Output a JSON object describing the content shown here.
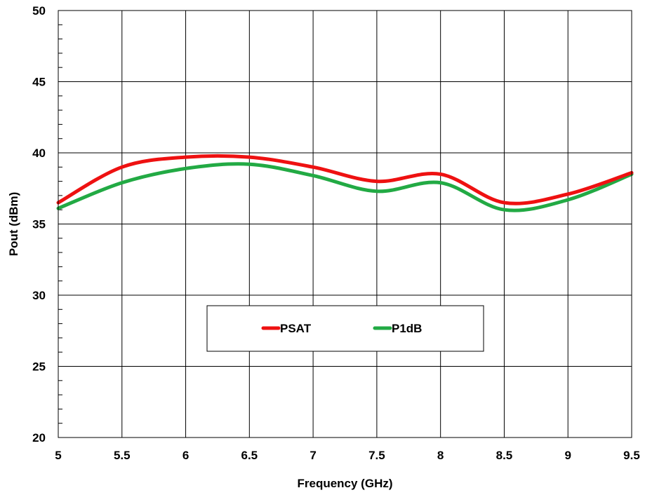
{
  "chart_data": {
    "type": "line",
    "xlabel": "Frequency (GHz)",
    "ylabel": "Pout (dBm)",
    "xlim": [
      5,
      9.5
    ],
    "ylim": [
      20,
      50
    ],
    "x_ticks": [
      "5",
      "5.5",
      "6",
      "6.5",
      "7",
      "7.5",
      "8",
      "8.5",
      "9",
      "9.5"
    ],
    "y_ticks": [
      "20",
      "25",
      "30",
      "35",
      "40",
      "45",
      "50"
    ],
    "grid": true,
    "legend_position": "center",
    "series": [
      {
        "name": "PSAT",
        "color": "#ee1111",
        "x": [
          5,
          5.5,
          6,
          6.5,
          7,
          7.5,
          8,
          8.5,
          9,
          9.5
        ],
        "y": [
          36.5,
          39.0,
          39.7,
          39.7,
          39.0,
          38.0,
          38.5,
          36.5,
          37.1,
          38.6
        ]
      },
      {
        "name": "P1dB",
        "color": "#22aa44",
        "x": [
          5,
          5.5,
          6,
          6.5,
          7,
          7.5,
          8,
          8.5,
          9,
          9.5
        ],
        "y": [
          36.1,
          37.9,
          38.9,
          39.2,
          38.4,
          37.3,
          37.9,
          36.0,
          36.7,
          38.5
        ]
      }
    ]
  }
}
